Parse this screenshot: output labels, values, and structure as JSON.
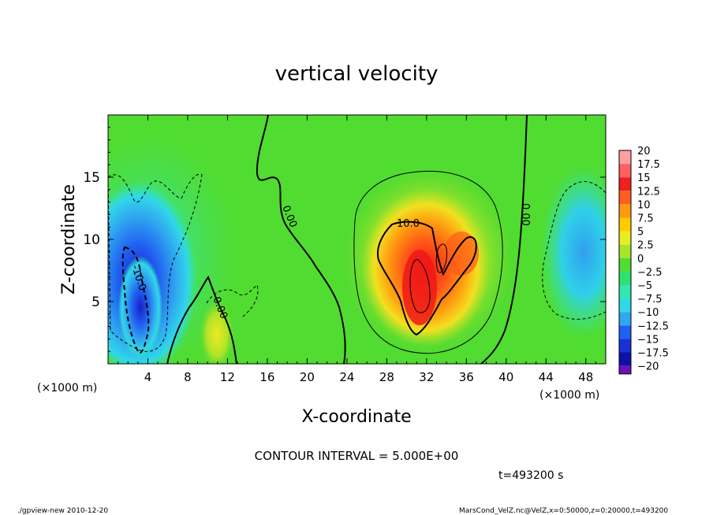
{
  "chart_data": {
    "type": "heatmap",
    "title": "vertical velocity",
    "xlabel": "X-coordinate",
    "ylabel": "Z-coordinate",
    "x_unit_left": "(×1000 m)",
    "x_unit_right": "(×1000 m)",
    "xlim": [
      0,
      50
    ],
    "ylim": [
      0,
      20
    ],
    "x_ticks": [
      4,
      8,
      12,
      16,
      20,
      24,
      28,
      32,
      36,
      40,
      44,
      48
    ],
    "y_ticks": [
      5,
      10,
      15
    ],
    "colorbar": {
      "labels": [
        "20",
        "17.5",
        "15",
        "12.5",
        "10",
        "7.5",
        "5",
        "2.5",
        "0",
        "−2.5",
        "−5",
        "−7.5",
        "−10",
        "−12.5",
        "−15",
        "−17.5",
        "−20"
      ],
      "colors": [
        "#ffa0a0",
        "#ff6060",
        "#f02020",
        "#ff6020",
        "#ff9a10",
        "#ffcc00",
        "#e8ec20",
        "#a8e428",
        "#50dc30",
        "#30e070",
        "#30e8b0",
        "#30d8e8",
        "#30a8f0",
        "#2060f0",
        "#1830d8",
        "#1010a8",
        "#7010b8"
      ]
    },
    "contour_labels": [
      "-10.0",
      "0.00",
      "0.00",
      "10.0",
      "0.00"
    ],
    "contour_interval": "CONTOUR INTERVAL = 5.000E+00",
    "time": "t=493200 s"
  },
  "footer": {
    "left": "./gpview-new 2010-12-20",
    "right": "MarsCond_VelZ.nc@VelZ,x=0:50000,z=0:20000,t=493200"
  },
  "colors": {
    "background": "#50dc30",
    "updraft": "#ff3010",
    "downdraft": "#2050f0"
  }
}
